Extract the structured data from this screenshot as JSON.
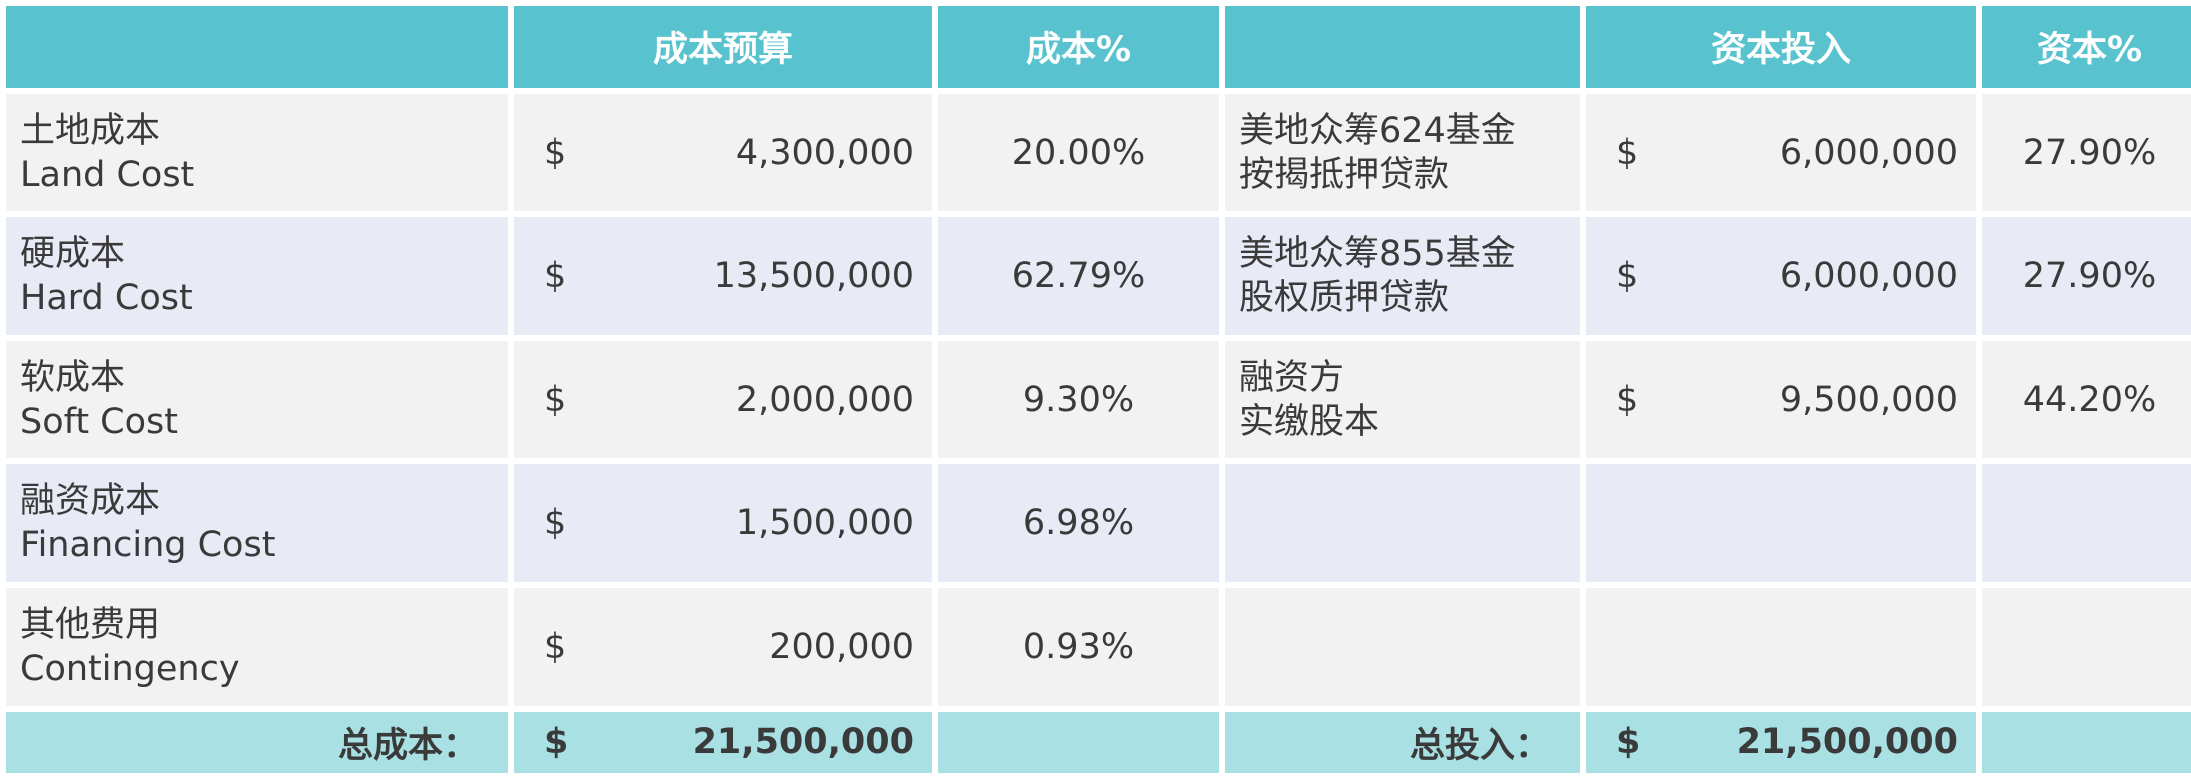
{
  "headers": {
    "left_label": "",
    "cost_budget": "成本预算",
    "cost_pct": "成本%",
    "right_label": "",
    "capital_input": "资本投入",
    "capital_pct": "资本%"
  },
  "rows": [
    {
      "cost_cn": "土地成本",
      "cost_en": "Land Cost",
      "currency": "$",
      "cost_amount": "4,300,000",
      "cost_pct": "20.00%",
      "fund_line1": "美地众筹624基金",
      "fund_line2": "按揭抵押贷款",
      "fund_currency": "$",
      "fund_amount": "6,000,000",
      "fund_pct": "27.90%"
    },
    {
      "cost_cn": "硬成本",
      "cost_en": "Hard Cost",
      "currency": "$",
      "cost_amount": "13,500,000",
      "cost_pct": "62.79%",
      "fund_line1": "美地众筹855基金",
      "fund_line2": "股权质押贷款",
      "fund_currency": "$",
      "fund_amount": "6,000,000",
      "fund_pct": "27.90%"
    },
    {
      "cost_cn": "软成本",
      "cost_en": "Soft Cost",
      "currency": "$",
      "cost_amount": "2,000,000",
      "cost_pct": "9.30%",
      "fund_line1": "融资方",
      "fund_line2": "实缴股本",
      "fund_currency": "$",
      "fund_amount": "9,500,000",
      "fund_pct": "44.20%"
    },
    {
      "cost_cn": "融资成本",
      "cost_en": "Financing Cost",
      "currency": "$",
      "cost_amount": "1,500,000",
      "cost_pct": "6.98%",
      "fund_line1": "",
      "fund_line2": "",
      "fund_currency": "",
      "fund_amount": "",
      "fund_pct": ""
    },
    {
      "cost_cn": "其他费用",
      "cost_en": "Contingency",
      "currency": "$",
      "cost_amount": "200,000",
      "cost_pct": "0.93%",
      "fund_line1": "",
      "fund_line2": "",
      "fund_currency": "",
      "fund_amount": "",
      "fund_pct": ""
    }
  ],
  "totals": {
    "cost_label": "总成本：",
    "cost_currency": "$",
    "cost_total": "21,500,000",
    "capital_label": "总投入：",
    "capital_currency": "$",
    "capital_total": "21,500,000"
  },
  "colors": {
    "header_bg": "#58c3cf",
    "total_bg": "#a8e0e4",
    "row_odd_bg": "#f2f2f2",
    "row_even_bg": "#e8eaf6"
  }
}
